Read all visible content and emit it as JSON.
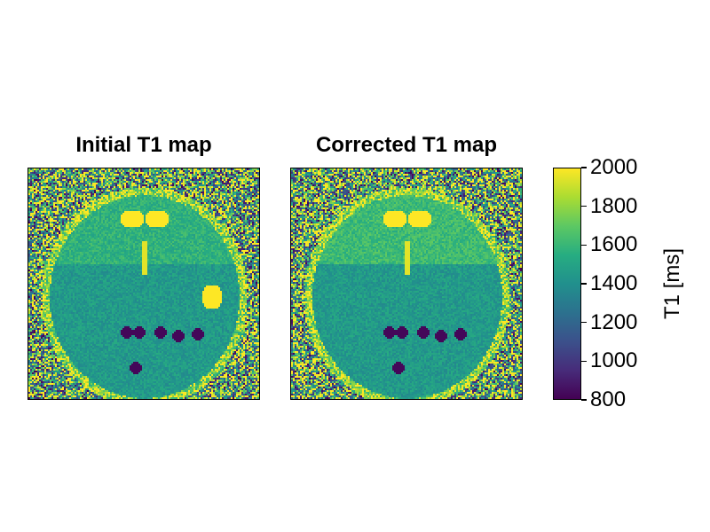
{
  "chart_data": {
    "type": "heatmap",
    "panels": [
      {
        "title": "Initial T1 map"
      },
      {
        "title": "Corrected T1 map"
      }
    ],
    "colorbar": {
      "label": "T1 [ms]",
      "range": [
        800,
        2000
      ],
      "colormap": "viridis",
      "ticks": [
        2000,
        1800,
        1600,
        1400,
        1200,
        1000,
        800
      ],
      "tick_labels": [
        "2000",
        "1800",
        "1600",
        "1400",
        "1200",
        "1000",
        "800"
      ]
    }
  }
}
